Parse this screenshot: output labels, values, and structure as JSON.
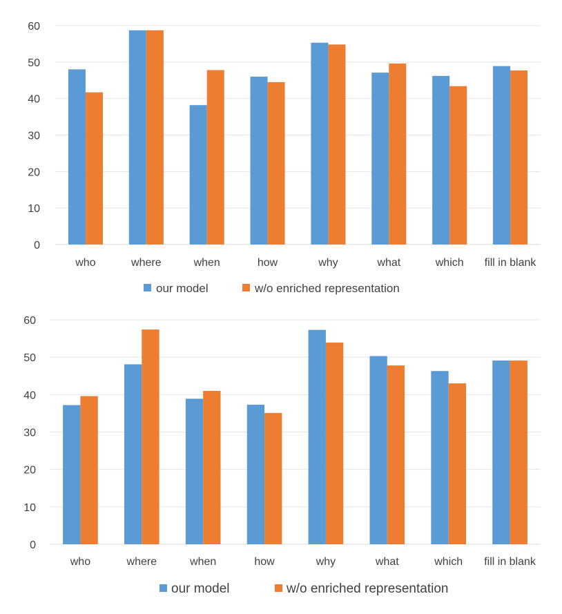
{
  "chart_data": [
    {
      "type": "bar",
      "title": "",
      "xlabel": "",
      "ylabel": "",
      "ylim": [
        0,
        60
      ],
      "yticks": [
        "0",
        "10",
        "20",
        "30",
        "40",
        "50",
        "60"
      ],
      "grid": true,
      "legend_position": "bottom",
      "categories": [
        "who",
        "where",
        "when",
        "how",
        "why",
        "what",
        "which",
        "fill in blank"
      ],
      "series": [
        {
          "name": "our model",
          "color": "#5b9bd5",
          "values": [
            48.0,
            58.7,
            38.2,
            46.0,
            55.3,
            47.1,
            46.2,
            48.9
          ]
        },
        {
          "name": "w/o enriched representation",
          "color": "#ed7d31",
          "values": [
            41.7,
            58.7,
            47.8,
            44.5,
            54.8,
            49.6,
            43.4,
            47.7
          ]
        }
      ]
    },
    {
      "type": "bar",
      "title": "",
      "xlabel": "",
      "ylabel": "",
      "ylim": [
        0,
        60
      ],
      "yticks": [
        "0",
        "10",
        "20",
        "30",
        "40",
        "50",
        "60"
      ],
      "grid": true,
      "legend_position": "bottom",
      "categories": [
        "who",
        "where",
        "when",
        "how",
        "why",
        "what",
        "which",
        "fill in blank"
      ],
      "series": [
        {
          "name": "our model",
          "color": "#5b9bd5",
          "values": [
            37.2,
            48.1,
            38.9,
            37.3,
            57.3,
            50.3,
            46.3,
            49.1
          ]
        },
        {
          "name": "w/o enriched representation",
          "color": "#ed7d31",
          "values": [
            39.6,
            57.4,
            41.0,
            35.1,
            53.9,
            47.8,
            43.0,
            49.1
          ]
        }
      ]
    }
  ]
}
